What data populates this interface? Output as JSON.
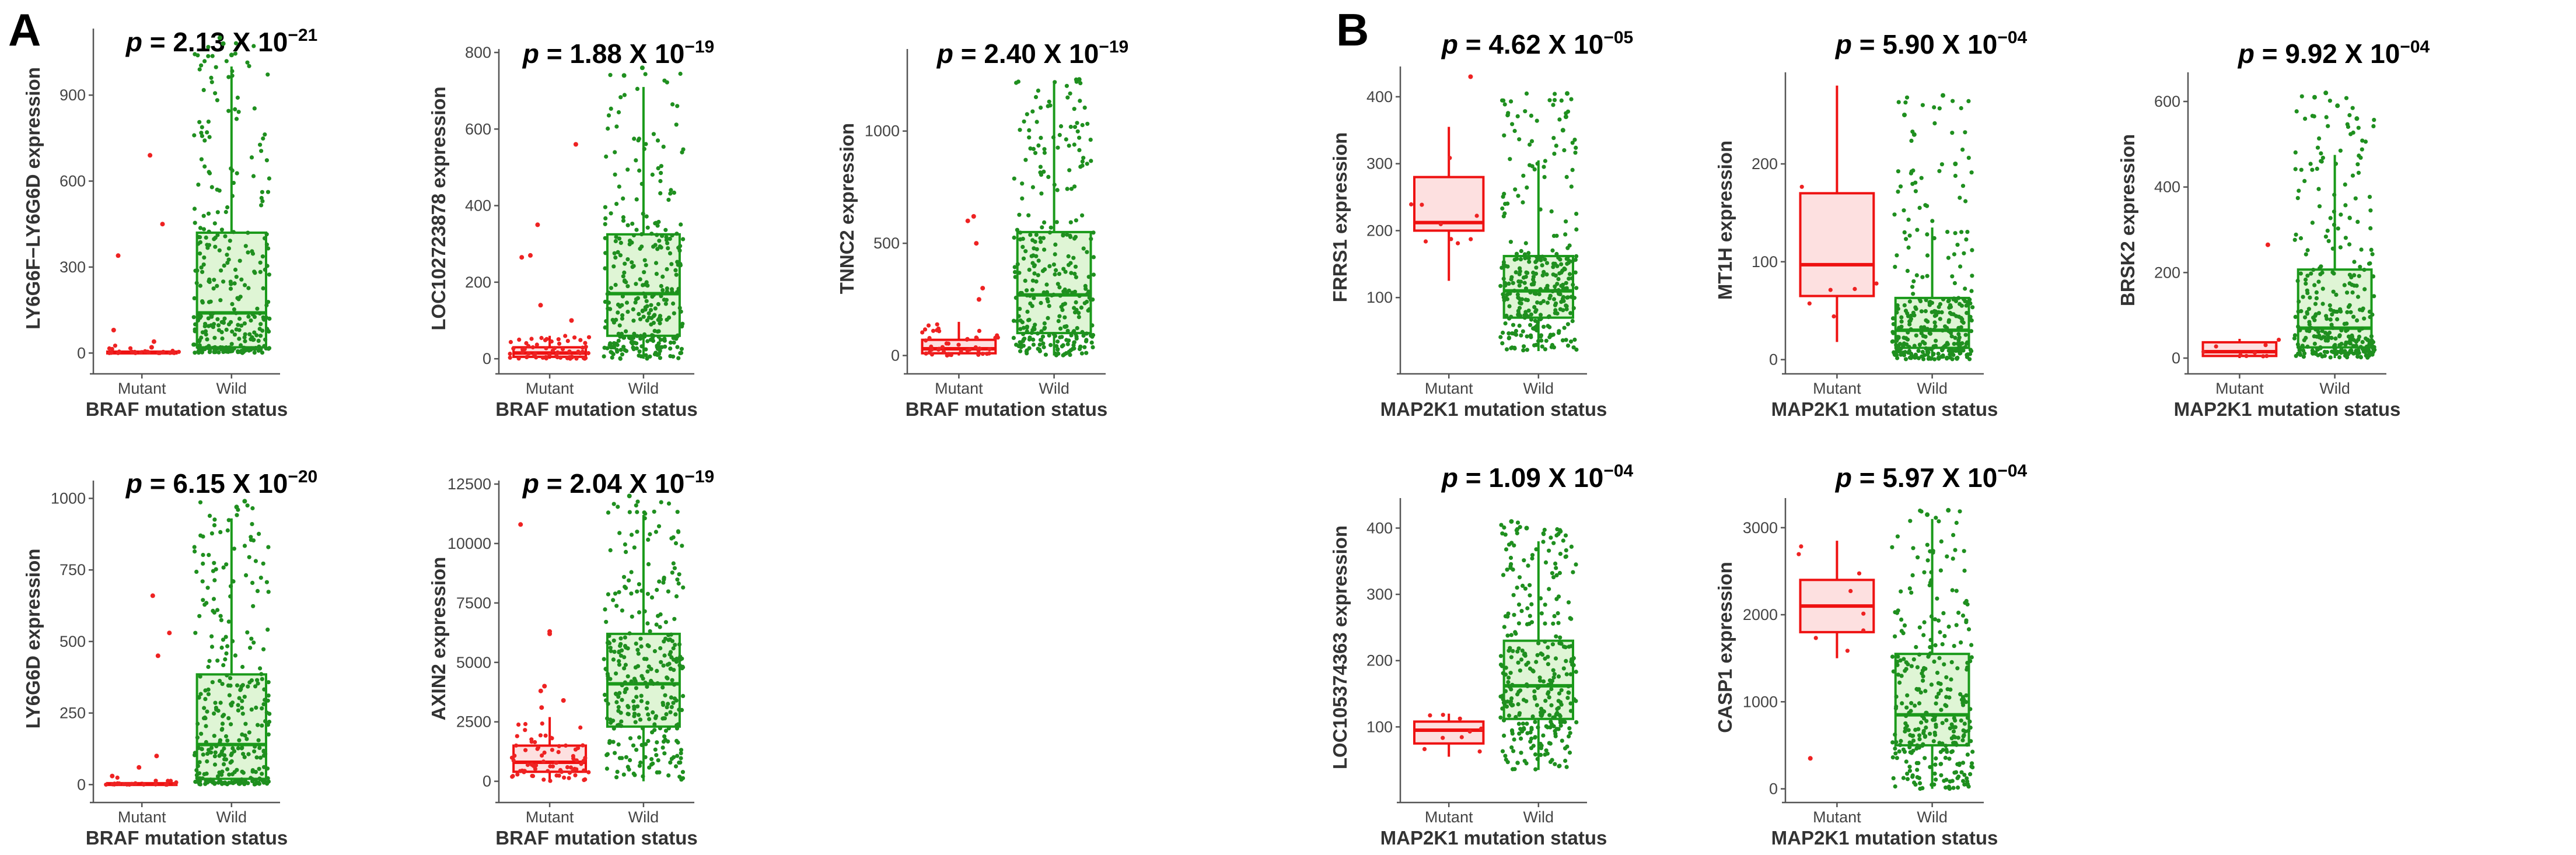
{
  "panels": [
    {
      "letter": "A"
    },
    {
      "letter": "B"
    }
  ],
  "colors": {
    "mutant_line": "#ee1111",
    "mutant_fill": "#fde0e0",
    "wild_line": "#1a9a1a",
    "wild_fill": "#dff5d5",
    "wild_point": "#1f8f1f",
    "mutant_point": "#ee2222"
  },
  "chart_data": [
    {
      "type": "box",
      "panel": "A",
      "title": {
        "p": "p",
        "text": " = 2.13 X 10",
        "exp": "−21"
      },
      "xlabel": "BRAF mutation status",
      "ylabel": "LY6G6F−LY6G6D expression",
      "categories": [
        "Mutant",
        "Wild"
      ],
      "ylim": [
        -40,
        1120
      ],
      "yticks": [
        0,
        300,
        600,
        900
      ],
      "series": [
        {
          "name": "Mutant",
          "q1": 0,
          "median": 2,
          "q3": 5,
          "whisker_low": 0,
          "whisker_high": 10,
          "outliers": [
            690,
            450,
            340,
            80,
            40,
            20
          ],
          "n_points": 22,
          "point_max": 30
        },
        {
          "name": "Wild",
          "q1": 20,
          "median": 140,
          "q3": 420,
          "whisker_low": 0,
          "whisker_high": 1000,
          "outliers": [
            1040,
            1080,
            1100
          ],
          "n_points": 320,
          "point_max": 1100
        }
      ]
    },
    {
      "type": "box",
      "panel": "A",
      "title": {
        "p": "p",
        "text": " = 1.88 X 10",
        "exp": "−19"
      },
      "xlabel": "BRAF mutation status",
      "ylabel": "LOC102723878 expression",
      "categories": [
        "Mutant",
        "Wild"
      ],
      "ylim": [
        -15,
        800
      ],
      "yticks": [
        0,
        200,
        400,
        600,
        800
      ],
      "series": [
        {
          "name": "Mutant",
          "q1": 5,
          "median": 15,
          "q3": 30,
          "whisker_low": 0,
          "whisker_high": 60,
          "outliers": [
            560,
            350,
            270,
            265,
            140,
            100
          ],
          "n_points": 60,
          "point_max": 60
        },
        {
          "name": "Wild",
          "q1": 60,
          "median": 170,
          "q3": 325,
          "whisker_low": 0,
          "whisker_high": 710,
          "outliers": [
            740,
            760
          ],
          "n_points": 320,
          "point_max": 760
        }
      ]
    },
    {
      "type": "box",
      "panel": "A",
      "title": {
        "p": "p",
        "text": " = 2.40 X 10",
        "exp": "−19"
      },
      "xlabel": "BRAF mutation status",
      "ylabel": "TNNC2 expression",
      "categories": [
        "Mutant",
        "Wild"
      ],
      "ylim": [
        -40,
        1350
      ],
      "yticks": [
        0,
        500,
        1000
      ],
      "series": [
        {
          "name": "Mutant",
          "q1": 10,
          "median": 30,
          "q3": 70,
          "whisker_low": 0,
          "whisker_high": 150,
          "outliers": [
            620,
            600,
            500,
            300,
            250
          ],
          "n_points": 45,
          "point_max": 150
        },
        {
          "name": "Wild",
          "q1": 100,
          "median": 270,
          "q3": 550,
          "whisker_low": 0,
          "whisker_high": 1220,
          "outliers": [
            1230
          ],
          "n_points": 320,
          "point_max": 1230
        }
      ]
    },
    {
      "type": "box",
      "panel": "A",
      "title": {
        "p": "p",
        "text": " = 6.15 X 10",
        "exp": "−20"
      },
      "xlabel": "BRAF mutation status",
      "ylabel": "LY6G6D expression",
      "categories": [
        "Mutant",
        "Wild"
      ],
      "ylim": [
        -30,
        1050
      ],
      "yticks": [
        0,
        250,
        500,
        750,
        1000
      ],
      "series": [
        {
          "name": "Mutant",
          "q1": 0,
          "median": 2,
          "q3": 5,
          "whisker_low": 0,
          "whisker_high": 10,
          "outliers": [
            660,
            530,
            450,
            100,
            60,
            30
          ],
          "n_points": 22,
          "point_max": 30
        },
        {
          "name": "Wild",
          "q1": 20,
          "median": 140,
          "q3": 385,
          "whisker_low": 0,
          "whisker_high": 930,
          "outliers": [
            970,
            990
          ],
          "n_points": 320,
          "point_max": 990
        }
      ]
    },
    {
      "type": "box",
      "panel": "A",
      "title": {
        "p": "p",
        "text": " = 2.04 X 10",
        "exp": "−19"
      },
      "xlabel": "BRAF mutation status",
      "ylabel": "AXIN2 expression",
      "categories": [
        "Mutant",
        "Wild"
      ],
      "ylim": [
        -500,
        12500
      ],
      "yticks": [
        0,
        2500,
        5000,
        7500,
        10000,
        12500
      ],
      "series": [
        {
          "name": "Mutant",
          "q1": 400,
          "median": 800,
          "q3": 1500,
          "whisker_low": 0,
          "whisker_high": 2700,
          "outliers": [
            10800,
            6300,
            6200,
            4000,
            3800,
            3400,
            3100
          ],
          "n_points": 75,
          "point_max": 2700
        },
        {
          "name": "Wild",
          "q1": 2300,
          "median": 4100,
          "q3": 6200,
          "whisker_low": 0,
          "whisker_high": 11200,
          "outliers": [
            12000
          ],
          "n_points": 320,
          "point_max": 12000
        }
      ]
    },
    {
      "type": "box",
      "panel": "B",
      "title": {
        "p": "p",
        "text": " = 4.62 X 10",
        "exp": "−05"
      },
      "xlabel": "MAP2K1 mutation status",
      "ylabel": "FRRS1 expression",
      "categories": [
        "Mutant",
        "Wild"
      ],
      "ylim": [
        0,
        440
      ],
      "yticks": [
        100,
        200,
        300,
        400
      ],
      "series": [
        {
          "name": "Mutant",
          "q1": 200,
          "median": 212,
          "q3": 280,
          "whisker_low": 125,
          "whisker_high": 355,
          "outliers": [
            430
          ],
          "n_points": 9,
          "point_max": 360
        },
        {
          "name": "Wild",
          "q1": 70,
          "median": 110,
          "q3": 162,
          "whisker_low": 20,
          "whisker_high": 305,
          "outliers": [
            405,
            370,
            350
          ],
          "n_points": 320,
          "point_max": 405
        }
      ]
    },
    {
      "type": "box",
      "panel": "B",
      "title": {
        "p": "p",
        "text": " = 5.90 X 10",
        "exp": "−04"
      },
      "xlabel": "MAP2K1 mutation status",
      "ylabel": "MT1H expression",
      "categories": [
        "Mutant",
        "Wild"
      ],
      "ylim": [
        -5,
        290
      ],
      "yticks": [
        0,
        100,
        200
      ],
      "series": [
        {
          "name": "Mutant",
          "q1": 65,
          "median": 97,
          "q3": 170,
          "whisker_low": 18,
          "whisker_high": 280,
          "outliers": [],
          "n_points": 6,
          "point_max": 280
        },
        {
          "name": "Wild",
          "q1": 12,
          "median": 30,
          "q3": 63,
          "whisker_low": 0,
          "whisker_high": 135,
          "outliers": [
            270,
            250,
            230,
            200
          ],
          "n_points": 320,
          "point_max": 270
        }
      ]
    },
    {
      "type": "box",
      "panel": "B",
      "title": {
        "p": "p",
        "text": " = 9.92 X 10",
        "exp": "−04"
      },
      "xlabel": "MAP2K1 mutation status",
      "ylabel": "BRSK2 expression",
      "categories": [
        "Mutant",
        "Wild"
      ],
      "ylim": [
        -15,
        660
      ],
      "yticks": [
        0,
        200,
        400,
        600
      ],
      "series": [
        {
          "name": "Mutant",
          "q1": 5,
          "median": 15,
          "q3": 37,
          "whisker_low": 0,
          "whisker_high": 45,
          "outliers": [
            265
          ],
          "n_points": 9,
          "point_max": 45
        },
        {
          "name": "Wild",
          "q1": 25,
          "median": 70,
          "q3": 207,
          "whisker_low": 0,
          "whisker_high": 475,
          "outliers": [
            620,
            610,
            590,
            560
          ],
          "n_points": 320,
          "point_max": 620
        }
      ]
    },
    {
      "type": "box",
      "panel": "B",
      "title": {
        "p": "p",
        "text": " = 1.09 X 10",
        "exp": "−04"
      },
      "xlabel": "MAP2K1 mutation status",
      "ylabel": "LOC105374363 expression",
      "categories": [
        "Mutant",
        "Wild"
      ],
      "ylim": [
        0,
        440
      ],
      "yticks": [
        100,
        200,
        300,
        400
      ],
      "series": [
        {
          "name": "Mutant",
          "q1": 75,
          "median": 95,
          "q3": 108,
          "whisker_low": 55,
          "whisker_high": 120,
          "outliers": [],
          "n_points": 9,
          "point_max": 120
        },
        {
          "name": "Wild",
          "q1": 112,
          "median": 162,
          "q3": 230,
          "whisker_low": 35,
          "whisker_high": 380,
          "outliers": [
            410,
            400,
            395
          ],
          "n_points": 320,
          "point_max": 410
        }
      ]
    },
    {
      "type": "box",
      "panel": "B",
      "title": {
        "p": "p",
        "text": " = 5.97 X 10",
        "exp": "−04"
      },
      "xlabel": "MAP2K1 mutation status",
      "ylabel": "CASP1 expression",
      "categories": [
        "Mutant",
        "Wild"
      ],
      "ylim": [
        -50,
        3300
      ],
      "yticks": [
        0,
        1000,
        2000,
        3000
      ],
      "series": [
        {
          "name": "Mutant",
          "q1": 1800,
          "median": 2100,
          "q3": 2400,
          "whisker_low": 1500,
          "whisker_high": 2850,
          "outliers": [
            350
          ],
          "n_points": 8,
          "point_max": 2850
        },
        {
          "name": "Wild",
          "q1": 500,
          "median": 850,
          "q3": 1550,
          "whisker_low": 0,
          "whisker_high": 3100,
          "outliers": [
            3200,
            3150
          ],
          "n_points": 320,
          "point_max": 3200
        }
      ]
    }
  ]
}
